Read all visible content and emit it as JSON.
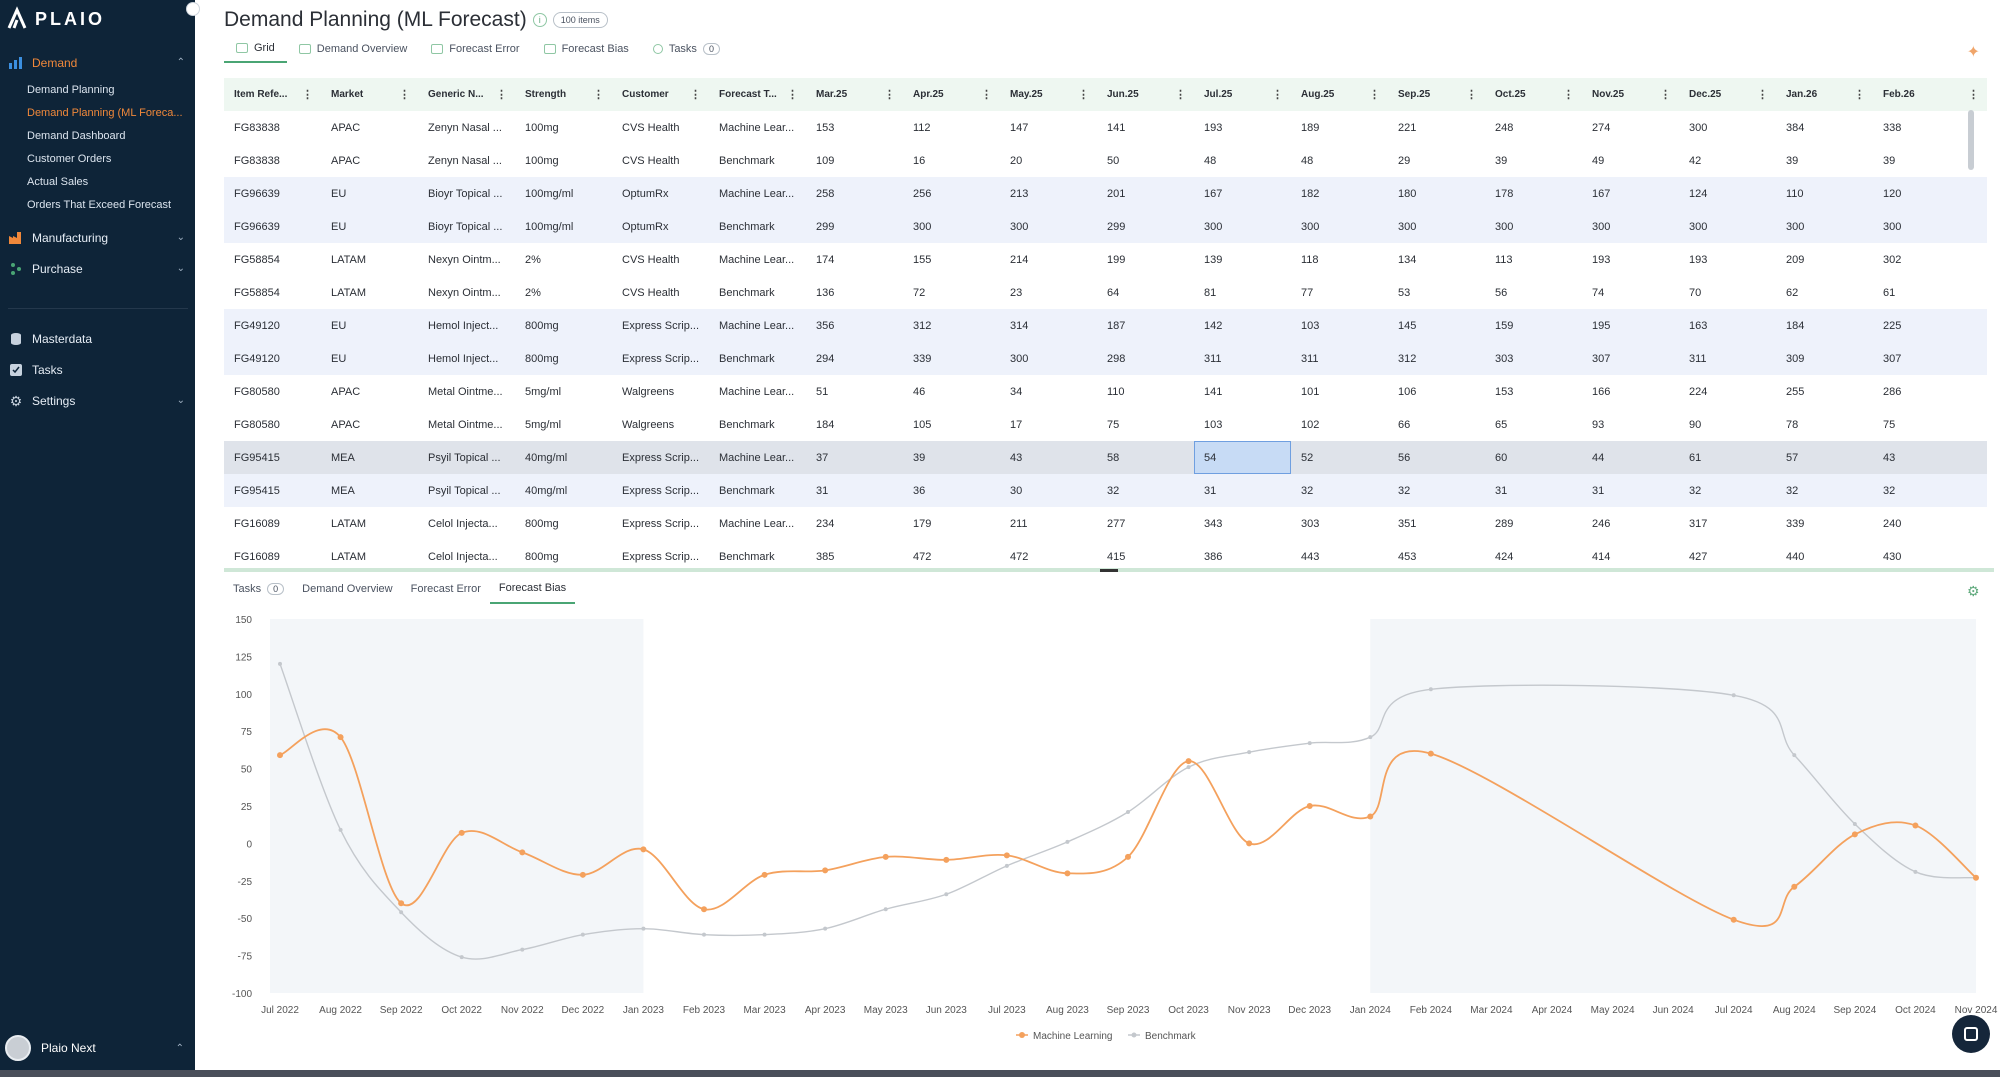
{
  "app": {
    "logo_text": "PLAIO"
  },
  "sidebar": {
    "groups": [
      {
        "label": "Demand",
        "icon": "bar-chart-icon",
        "expanded": true
      },
      {
        "label": "Manufacturing",
        "icon": "factory-icon",
        "expanded": false
      },
      {
        "label": "Purchase",
        "icon": "purchase-icon",
        "expanded": false
      }
    ],
    "demand_items": [
      "Demand Planning",
      "Demand Planning (ML Foreca...",
      "Demand Dashboard",
      "Customer Orders",
      "Actual Sales",
      "Orders That Exceed Forecast"
    ],
    "lower_items": [
      {
        "label": "Masterdata",
        "icon": "database-icon"
      },
      {
        "label": "Tasks",
        "icon": "checkbox-icon"
      },
      {
        "label": "Settings",
        "icon": "gear-icon"
      }
    ],
    "user_name": "Plaio Next"
  },
  "header": {
    "title": "Demand Planning (ML Forecast)",
    "item_count": "100 items"
  },
  "top_tabs": [
    {
      "label": "Grid"
    },
    {
      "label": "Demand Overview"
    },
    {
      "label": "Forecast Error"
    },
    {
      "label": "Forecast Bias"
    },
    {
      "label": "Tasks",
      "count": "0"
    }
  ],
  "grid": {
    "columns": [
      "Item Refe...",
      "Market",
      "Generic N...",
      "Strength",
      "Customer",
      "Forecast T...",
      "Mar.25",
      "Apr.25",
      "May.25",
      "Jun.25",
      "Jul.25",
      "Aug.25",
      "Sep.25",
      "Oct.25",
      "Nov.25",
      "Dec.25",
      "Jan.26",
      "Feb.26"
    ],
    "rows": [
      [
        "FG83838",
        "APAC",
        "Zenyn Nasal ...",
        "100mg",
        "CVS Health",
        "Machine Lear...",
        "153",
        "112",
        "147",
        "141",
        "193",
        "189",
        "221",
        "248",
        "274",
        "300",
        "384",
        "338"
      ],
      [
        "FG83838",
        "APAC",
        "Zenyn Nasal ...",
        "100mg",
        "CVS Health",
        "Benchmark",
        "109",
        "16",
        "20",
        "50",
        "48",
        "48",
        "29",
        "39",
        "49",
        "42",
        "39",
        "39"
      ],
      [
        "FG96639",
        "EU",
        "Bioyr Topical ...",
        "100mg/ml",
        "OptumRx",
        "Machine Lear...",
        "258",
        "256",
        "213",
        "201",
        "167",
        "182",
        "180",
        "178",
        "167",
        "124",
        "110",
        "120"
      ],
      [
        "FG96639",
        "EU",
        "Bioyr Topical ...",
        "100mg/ml",
        "OptumRx",
        "Benchmark",
        "299",
        "300",
        "300",
        "299",
        "300",
        "300",
        "300",
        "300",
        "300",
        "300",
        "300",
        "300"
      ],
      [
        "FG58854",
        "LATAM",
        "Nexyn Ointm...",
        "2%",
        "CVS Health",
        "Machine Lear...",
        "174",
        "155",
        "214",
        "199",
        "139",
        "118",
        "134",
        "113",
        "193",
        "193",
        "209",
        "302"
      ],
      [
        "FG58854",
        "LATAM",
        "Nexyn Ointm...",
        "2%",
        "CVS Health",
        "Benchmark",
        "136",
        "72",
        "23",
        "64",
        "81",
        "77",
        "53",
        "56",
        "74",
        "70",
        "62",
        "61"
      ],
      [
        "FG49120",
        "EU",
        "Hemol Inject...",
        "800mg",
        "Express Scrip...",
        "Machine Lear...",
        "356",
        "312",
        "314",
        "187",
        "142",
        "103",
        "145",
        "159",
        "195",
        "163",
        "184",
        "225"
      ],
      [
        "FG49120",
        "EU",
        "Hemol Inject...",
        "800mg",
        "Express Scrip...",
        "Benchmark",
        "294",
        "339",
        "300",
        "298",
        "311",
        "311",
        "312",
        "303",
        "307",
        "311",
        "309",
        "307"
      ],
      [
        "FG80580",
        "APAC",
        "Metal Ointme...",
        "5mg/ml",
        "Walgreens",
        "Machine Lear...",
        "51",
        "46",
        "34",
        "110",
        "141",
        "101",
        "106",
        "153",
        "166",
        "224",
        "255",
        "286"
      ],
      [
        "FG80580",
        "APAC",
        "Metal Ointme...",
        "5mg/ml",
        "Walgreens",
        "Benchmark",
        "184",
        "105",
        "17",
        "75",
        "103",
        "102",
        "66",
        "65",
        "93",
        "90",
        "78",
        "75"
      ],
      [
        "FG95415",
        "MEA",
        "Psyil Topical ...",
        "40mg/ml",
        "Express Scrip...",
        "Machine Lear...",
        "37",
        "39",
        "43",
        "58",
        "54",
        "52",
        "56",
        "60",
        "44",
        "61",
        "57",
        "43"
      ],
      [
        "FG95415",
        "MEA",
        "Psyil Topical ...",
        "40mg/ml",
        "Express Scrip...",
        "Benchmark",
        "31",
        "36",
        "30",
        "32",
        "31",
        "32",
        "32",
        "31",
        "31",
        "32",
        "32",
        "32"
      ],
      [
        "FG16089",
        "LATAM",
        "Celol Injecta...",
        "800mg",
        "Express Scrip...",
        "Machine Lear...",
        "234",
        "179",
        "211",
        "277",
        "343",
        "303",
        "351",
        "289",
        "246",
        "317",
        "339",
        "240"
      ],
      [
        "FG16089",
        "LATAM",
        "Celol Injecta...",
        "800mg",
        "Express Scrip...",
        "Benchmark",
        "385",
        "472",
        "472",
        "415",
        "386",
        "443",
        "453",
        "424",
        "414",
        "427",
        "440",
        "430"
      ]
    ],
    "shaded_rows": [
      2,
      3,
      6,
      7,
      11
    ],
    "selected_row": 10,
    "selected_cell": [
      10,
      10
    ]
  },
  "bottom_tabs": [
    {
      "label": "Tasks",
      "count": "0"
    },
    {
      "label": "Demand Overview"
    },
    {
      "label": "Forecast Error"
    },
    {
      "label": "Forecast Bias",
      "active": true
    }
  ],
  "colors": {
    "accent": "#4aa574",
    "ml": "#f4a15d",
    "benchmark": "#c4c8cd",
    "sidebar": "#0e2438",
    "active_nav": "#f0883a"
  },
  "chart_data": {
    "type": "line",
    "title": "",
    "xlabel": "",
    "ylabel": "",
    "ylim": [
      -100,
      150
    ],
    "yticks": [
      150,
      125,
      100,
      75,
      50,
      25,
      0,
      -25,
      -50,
      -75,
      -100
    ],
    "x": [
      "Jul 2022",
      "Aug 2022",
      "Sep 2022",
      "Oct 2022",
      "Nov 2022",
      "Dec 2022",
      "Jan 2023",
      "Feb 2023",
      "Mar 2023",
      "Apr 2023",
      "May 2023",
      "Jun 2023",
      "Jul 2023",
      "Aug 2023",
      "Sep 2023",
      "Oct 2023",
      "Nov 2023",
      "Dec 2023",
      "Jan 2024",
      "Feb 2024",
      "Mar 2024",
      "Apr 2024",
      "May 2024",
      "Jun 2024",
      "Jul 2024",
      "Aug 2024",
      "Sep 2024",
      "Oct 2024",
      "Nov 2024"
    ],
    "series": [
      {
        "name": "Machine Learning",
        "values": [
          59,
          71,
          -40,
          7,
          -6,
          -21,
          -4,
          -44,
          -21,
          -18,
          -9,
          -11,
          -8,
          -20,
          -9,
          55,
          0,
          25,
          18,
          60,
          null,
          null,
          null,
          null,
          -51,
          -29,
          6,
          12,
          -23
        ]
      },
      {
        "name": "Benchmark",
        "values": [
          120,
          9,
          -46,
          -76,
          -71,
          -61,
          -57,
          -61,
          -61,
          -57,
          -44,
          -34,
          -15,
          1,
          21,
          51,
          61,
          67,
          71,
          103,
          null,
          null,
          null,
          null,
          99,
          59,
          13,
          -19,
          -23
        ]
      }
    ],
    "grid": true,
    "legend": "bottom-center"
  }
}
